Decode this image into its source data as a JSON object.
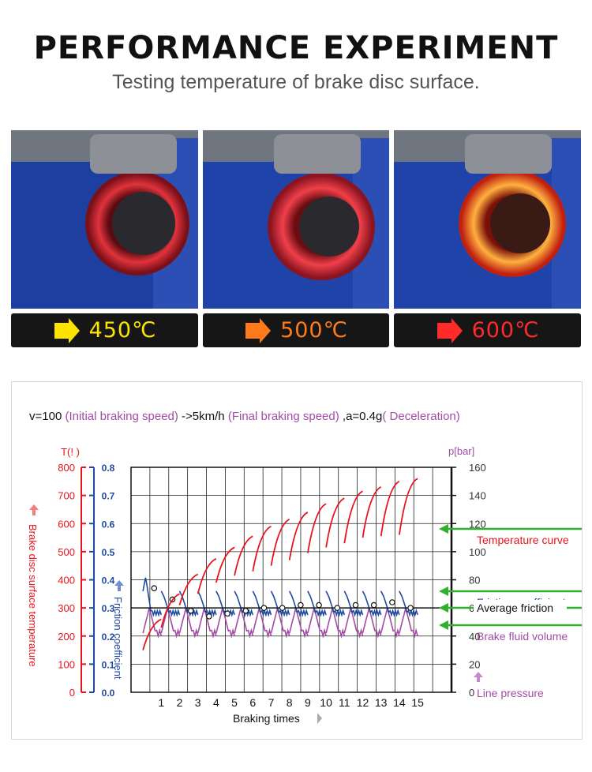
{
  "header": {
    "title": "PERFORMANCE EXPERIMENT",
    "subtitle": "Testing temperature of brake disc surface."
  },
  "photos": [
    {
      "temperature": "450℃",
      "color": "#ffe400"
    },
    {
      "temperature": "500℃",
      "color": "#ff7a1a"
    },
    {
      "temperature": "600℃",
      "color": "#ff2a2a"
    }
  ],
  "colors": {
    "temperature": "#e8141c",
    "friction": "#1f4aa0",
    "pressure": "#a24ca6",
    "annotation_arrow": "#2fb02f"
  },
  "chart_data": {
    "type": "line",
    "condition": {
      "v_text": "v=100",
      "initial": "(Initial braking speed)",
      "final_speed": "->5km/h",
      "final": "(Final braking speed)",
      "a_text": ",a=0.4g",
      "decel": "( Deceleration)"
    },
    "x": [
      1,
      2,
      3,
      4,
      5,
      6,
      7,
      8,
      9,
      10,
      11,
      12,
      13,
      14,
      15
    ],
    "xlabel": "Braking times",
    "axes": {
      "temperature": {
        "unit": "T(!  )",
        "label": "Brake disc surface temperature",
        "ticks": [
          0,
          100,
          200,
          300,
          400,
          500,
          600,
          700,
          800
        ],
        "range": [
          0,
          800
        ]
      },
      "friction": {
        "label": "Friction coefficient",
        "ticks": [
          "0.0",
          "0.1",
          "0.2",
          "0.3",
          "0.4",
          "0.5",
          "0.6",
          "0.7",
          "0.8"
        ],
        "range": [
          0,
          0.8
        ]
      },
      "pressure": {
        "unit": "p[bar]",
        "ticks": [
          0,
          20,
          40,
          60,
          80,
          100,
          120,
          140,
          160
        ],
        "range": [
          0,
          160
        ]
      }
    },
    "series": [
      {
        "name": "Temperature curve",
        "axis": "temperature",
        "segments": [
          [
            [
              0,
              150
            ],
            [
              1,
              260
            ]
          ],
          [
            [
              1,
              260
            ],
            [
              2,
              350
            ]
          ],
          [
            [
              2,
              350
            ],
            [
              3,
              420
            ]
          ],
          [
            [
              3,
              420
            ],
            [
              4,
              475
            ]
          ],
          [
            [
              4,
              475
            ],
            [
              5,
              515
            ]
          ],
          [
            [
              5,
              515
            ],
            [
              6,
              555
            ]
          ],
          [
            [
              6,
              555
            ],
            [
              7,
              590
            ]
          ],
          [
            [
              7,
              590
            ],
            [
              8,
              615
            ]
          ],
          [
            [
              8,
              615
            ],
            [
              9,
              640
            ]
          ],
          [
            [
              9,
              640
            ],
            [
              10,
              670
            ]
          ],
          [
            [
              10,
              670
            ],
            [
              11,
              690
            ]
          ],
          [
            [
              11,
              690
            ],
            [
              12,
              715
            ]
          ],
          [
            [
              12,
              715
            ],
            [
              13,
              730
            ]
          ],
          [
            [
              13,
              730
            ],
            [
              14,
              750
            ]
          ],
          [
            [
              14,
              750
            ],
            [
              15,
              760
            ]
          ]
        ],
        "start_temps": [
          150,
          230,
          310,
          350,
          390,
          415,
          430,
          450,
          470,
          495,
          515,
          530,
          550,
          555,
          560
        ]
      },
      {
        "name": "Friction coefficient",
        "axis": "friction",
        "cycle_start": 0.36,
        "cycle_peak": 0.34,
        "cycle_low": 0.28,
        "first_peak": 0.41,
        "markers": [
          0.37,
          0.33,
          0.29,
          0.27,
          0.28,
          0.29,
          0.3,
          0.3,
          0.31,
          0.31,
          0.3,
          0.31,
          0.31,
          0.32,
          0.3
        ]
      },
      {
        "name": "Brake fluid volume",
        "axis": "pressure",
        "low": 42,
        "high": 60
      },
      {
        "name": "Average friction",
        "axis": "friction",
        "value": 0.3
      }
    ],
    "legend": {
      "temperature": "Temperature curve",
      "friction": "Friction coefficient",
      "average": "Average friction",
      "volume": "Brake fluid volume",
      "pressure": "Line pressure"
    },
    "grid": true
  }
}
